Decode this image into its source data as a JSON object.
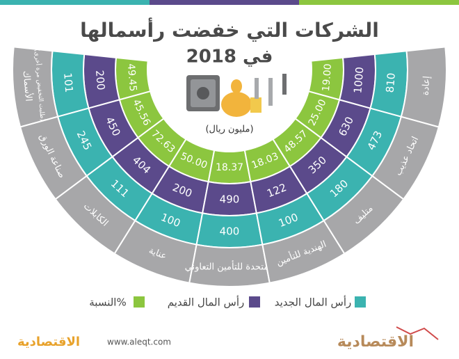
{
  "title": "الشركات التي خفضت رأسمالها",
  "title_year": "في 2018",
  "unit": "(مليون ريال)",
  "companies": [
    {
      "name": "الأسماك",
      "note": "(طلبت التخفيض مرة أخرى)",
      "old": 200,
      "new": 101,
      "pct": "49.45"
    },
    {
      "name": "صناعة الورق",
      "old": 450,
      "new": 245,
      "pct": "45.56"
    },
    {
      "name": "الكابلات",
      "old": 404,
      "new": 111,
      "pct": "72.63"
    },
    {
      "name": "عناية",
      "old": 200,
      "new": 100,
      "pct": "50.00"
    },
    {
      "name": "المتحدة للتأمين التعاوني",
      "old": 490,
      "new": 400,
      "pct": "18.37"
    },
    {
      "name": "الهندية للتأمين",
      "old": 122,
      "new": 100,
      "pct": "18.03"
    },
    {
      "name": "متليف",
      "old": 350,
      "new": 180,
      "pct": "48.57"
    },
    {
      "name": "اتحاد عذيب",
      "old": 630,
      "new": 473,
      "pct": "25.00"
    },
    {
      "name": "إعادة",
      "old": 1000,
      "new": 810,
      "pct": "19.00"
    }
  ],
  "legend": {
    "new": "رأس المال الجديد",
    "old": "رأس المال القديم",
    "pct": "النسبة%"
  },
  "footer": {
    "site": "www.aleqt.com",
    "logo": "الاقتصادية"
  }
}
